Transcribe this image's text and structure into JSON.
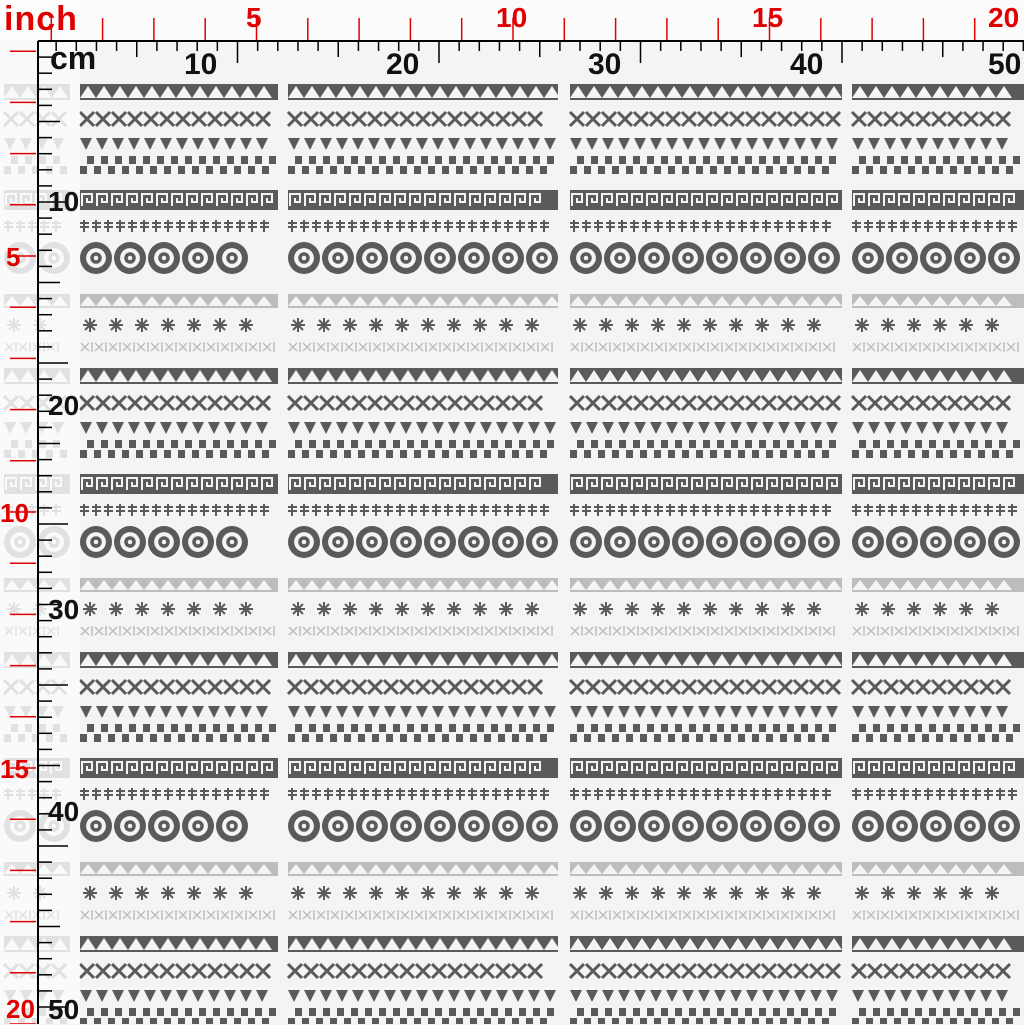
{
  "ruler": {
    "inch_unit": "inch",
    "cm_unit": "cm",
    "top_inch_labels": [
      "5",
      "10",
      "15",
      "20"
    ],
    "top_cm_labels": [
      "10",
      "20",
      "30",
      "40",
      "50"
    ],
    "left_inch_labels": [
      "5",
      "10",
      "15",
      "20"
    ],
    "left_cm_labels": [
      "10",
      "20",
      "30",
      "40",
      "50"
    ],
    "inch_color": "#e00000",
    "cm_color": "#111111"
  },
  "pattern": {
    "ink_color": "#5a5a5a",
    "light_ink_color": "#bdbdbd",
    "background_color": "#f4f4f4",
    "band_motifs": [
      "triangles",
      "zigzag",
      "triangles-small",
      "checker",
      "greek-key",
      "dashes",
      "rosettes",
      "triangles-light",
      "stars",
      "crosses"
    ]
  }
}
